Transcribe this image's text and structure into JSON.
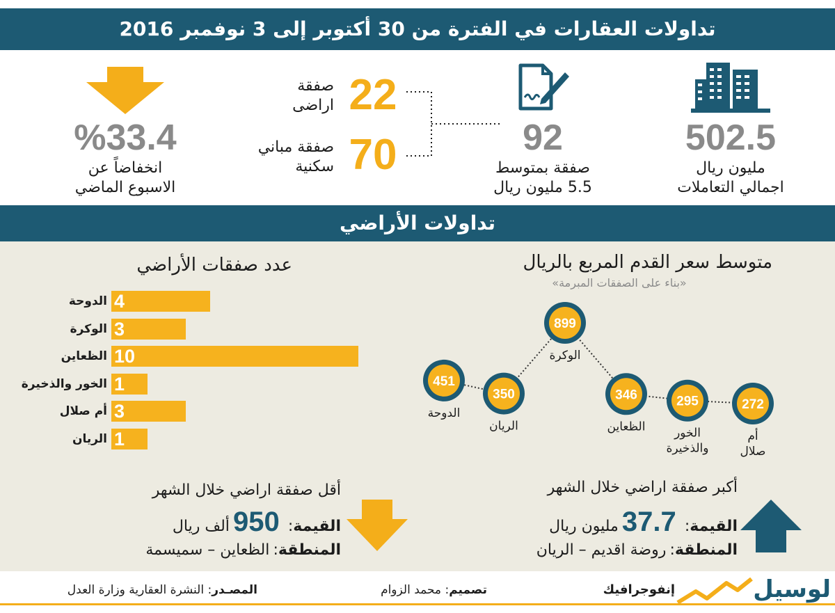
{
  "header": {
    "title": "تداولات العقارات في الفترة من 30 أكتوبر إلى 3 نوفمبر 2016"
  },
  "stats": {
    "total": {
      "value": "502.5",
      "line1": "مليون ريال",
      "line2": "اجمالي التعاملات",
      "icon": "buildings-icon"
    },
    "deals": {
      "value": "92",
      "line1": "صفقة بمتوسط",
      "line2": "5.5 مليون ريال",
      "icon": "contract-pen-icon"
    },
    "land": {
      "value": "22",
      "line1": "صفقة",
      "line2": "اراضى"
    },
    "residential": {
      "value": "70",
      "line1": "صفقة مباني",
      "line2": "سكنية"
    },
    "change": {
      "value": "%33.4",
      "line1": "انخفاضاً عن",
      "line2": "الاسبوع الماضي",
      "icon": "down-arrow-icon"
    }
  },
  "section": {
    "title": "تداولات الأراضي"
  },
  "land_count_chart_title": "عدد صفقات الأراضي",
  "price_chart_title": "متوسط سعر القدم المربع بالريال",
  "price_chart_subtitle": "«بناء على الصفقات المبرمة»",
  "chart_data": [
    {
      "type": "bar",
      "title": "عدد صفقات الأراضي",
      "categories": [
        "الدوحة",
        "الوكرة",
        "الظعاين",
        "الخور والذخيرة",
        "أم صلال",
        "الريان"
      ],
      "values": [
        4,
        3,
        10,
        1,
        3,
        1
      ],
      "orientation": "horizontal",
      "color": "#f6b21e"
    },
    {
      "type": "line",
      "title": "متوسط سعر القدم المربع بالريال",
      "subtitle": "«بناء على الصفقات المبرمة»",
      "categories": [
        "الدوحة",
        "الريان",
        "الوكرة",
        "الظعاين",
        "الخور والذخيرة",
        "أم صلال"
      ],
      "values": [
        451,
        350,
        899,
        346,
        295,
        272
      ],
      "marker_color": "#f6b21e",
      "marker_ring_color": "#1d5a73"
    }
  ],
  "min_deal": {
    "title": "أقل صفقة اراضي خلال الشهر",
    "value_label": "القيمة",
    "value_number": "950",
    "value_unit": "ألف ريال",
    "area_label": "المنطقة",
    "area_value": "الظعاين – سميسمة",
    "icon": "down-arrow-icon"
  },
  "max_deal": {
    "title": "أكبر صفقة اراضي خلال الشهر",
    "value_label": "القيمة",
    "value_number": "37.7",
    "value_unit": "مليون ريال",
    "area_label": "المنطقة",
    "area_value": "روضة اقديم – الريان",
    "icon": "up-arrow-icon"
  },
  "footer": {
    "logo": "لوسيل",
    "section": "إنفوجرافيك",
    "design_label": "تصميم",
    "designer": "محمد الزوام",
    "source_label": "المصـدر",
    "source": "النشرة العقارية وزارة العدل"
  },
  "colors": {
    "navy": "#1d5a73",
    "orange": "#f4ae1a",
    "beige": "#edebe1",
    "gray": "#8a8a8a"
  }
}
